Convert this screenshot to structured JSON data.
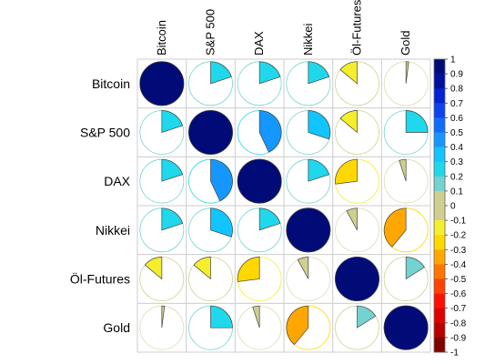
{
  "chart_data": {
    "type": "heatmap",
    "variables": [
      "Bitcoin",
      "S&P 500",
      "DAX",
      "Nikkei",
      "Öl-Futures",
      "Gold"
    ],
    "matrix": [
      [
        1.0,
        0.2,
        0.2,
        0.2,
        -0.14,
        0.02
      ],
      [
        0.2,
        1.0,
        0.43,
        0.3,
        -0.14,
        0.25
      ],
      [
        0.2,
        0.43,
        1.0,
        0.2,
        -0.27,
        -0.05
      ],
      [
        0.2,
        0.3,
        0.2,
        1.0,
        -0.08,
        -0.39
      ],
      [
        -0.14,
        -0.14,
        -0.27,
        -0.08,
        1.0,
        0.16
      ],
      [
        0.02,
        0.25,
        -0.05,
        -0.39,
        0.16,
        1.0
      ]
    ],
    "colorbar": {
      "ticks": [
        "1",
        "0.9",
        "0.8",
        "0.7",
        "0.6",
        "0.5",
        "0.4",
        "0.3",
        "0.2",
        "0.1",
        "0",
        "-0.1",
        "-0.2",
        "-0.3",
        "-0.4",
        "-0.5",
        "-0.6",
        "-0.7",
        "-0.8",
        "-0.9",
        "-1"
      ],
      "range": [
        -1,
        1
      ],
      "colors_pos": [
        "#cfcf8f",
        "#74d3d1",
        "#20d8ec",
        "#12c4ff",
        "#1597ff",
        "#0f6cff",
        "#0a44ee",
        "#0321d6",
        "#00109e",
        "#000b78"
      ],
      "colors_neg": [
        "#cfcf8f",
        "#f4ee2c",
        "#ffd800",
        "#ffa700",
        "#ff7500",
        "#ff4200",
        "#ff1000",
        "#e00000",
        "#b80000",
        "#800000"
      ]
    },
    "legend": "right"
  }
}
